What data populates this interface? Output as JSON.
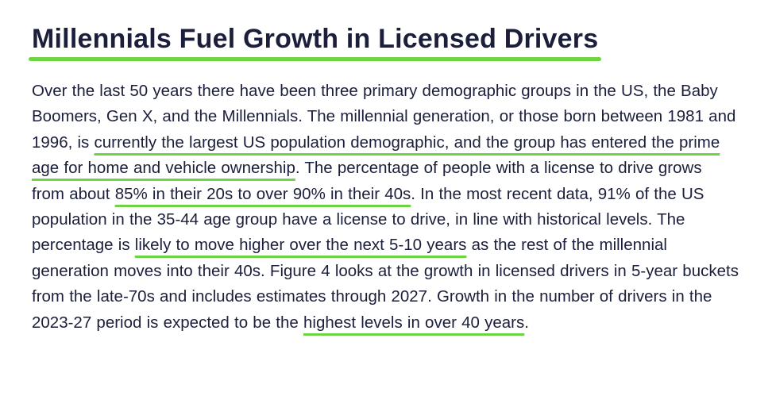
{
  "heading": {
    "title": "Millennials Fuel Growth in Licensed Drivers"
  },
  "accent_color": "#6fd444",
  "text_color": "#1b1f3b",
  "paragraph": {
    "s1": "Over the last 50 years there have been three primary demographic groups in the US, the Baby Boomers, Gen X, and the Millennials. The millennial generation, or those born between 1981 and 1996, is ",
    "h1": "currently the largest US population demographic, and the group has entered the prime age for home and vehicle ownership",
    "s2": ". The percentage of people with a license to drive grows from about ",
    "h2": "85% in their 20s to over 90% in their 40s",
    "s3": ". In the most recent data, 91% of the US population in the 35-44 age group have a license to drive, in line with historical levels. The percentage is ",
    "h3": "likely to move higher over the next 5-10 years",
    "s4": " as the rest of the millennial generation moves into their 40s. Figure 4 looks at the growth in licensed drivers in 5-year buckets from the late-70s and includes estimates through 2027. Growth in the number of drivers in the 2023-27 period is expected to be the ",
    "h4": "highest levels in over 40 years",
    "s5": "."
  }
}
